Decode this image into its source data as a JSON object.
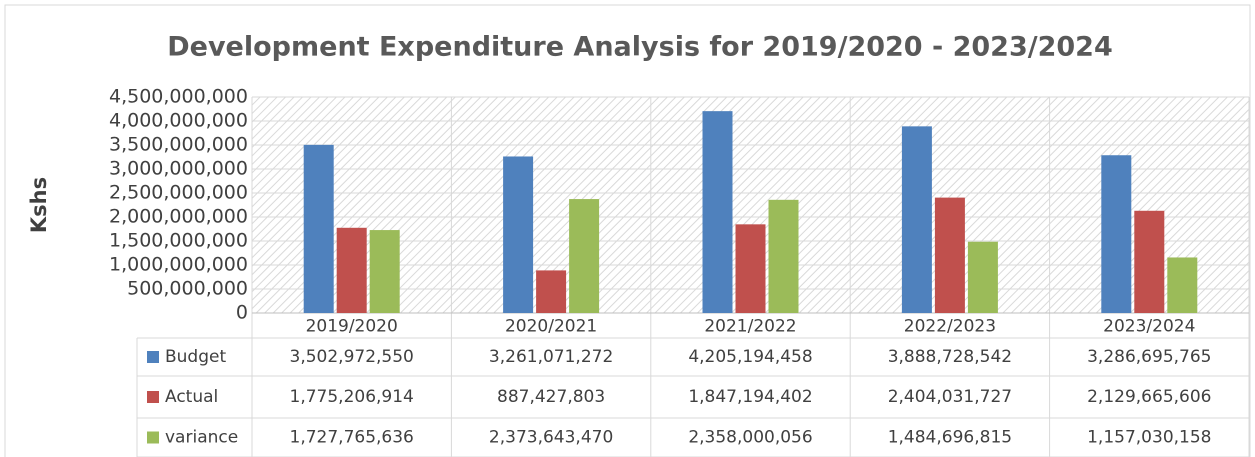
{
  "chart_data": {
    "type": "bar",
    "title": "Development Expenditure Analysis for 2019/2020 - 2023/2024",
    "y_label": "Kshs",
    "categories": [
      "2019/2020",
      "2020/2021",
      "2021/2022",
      "2022/2023",
      "2023/2024"
    ],
    "series": [
      {
        "name": "Budget",
        "color": "#4f81bd",
        "values": [
          3502972550,
          3261071272,
          4205194458,
          3888728542,
          3286695765
        ],
        "value_labels": [
          "3,502,972,550",
          "3,261,071,272",
          "4,205,194,458",
          "3,888,728,542",
          "3,286,695,765"
        ]
      },
      {
        "name": "Actual",
        "color": "#c0504d",
        "values": [
          1775206914,
          887427803,
          1847194402,
          2404031727,
          2129665606
        ],
        "value_labels": [
          "1,775,206,914",
          "887,427,803",
          "1,847,194,402",
          "2,404,031,727",
          "2,129,665,606"
        ]
      },
      {
        "name": "variance",
        "color": "#9bbb59",
        "values": [
          1727765636,
          2373643470,
          2358000056,
          1484696815,
          1157030158
        ],
        "value_labels": [
          "1,727,765,636",
          "2,373,643,470",
          "2,358,000,056",
          "1,484,696,815",
          "1,157,030,158"
        ]
      }
    ],
    "ylim": [
      0,
      4500000000
    ],
    "yticks": [
      0,
      {
        "value": 500000000,
        "label": "500,000,000"
      },
      {
        "value": 1000000000,
        "label": "1,000,000,000"
      },
      {
        "value": 1500000000,
        "label": "1,500,000,000"
      },
      {
        "value": 2000000000,
        "label": "2,000,000,000"
      },
      {
        "value": 2500000000,
        "label": "2,500,000,000"
      },
      {
        "value": 3000000000,
        "label": "3,000,000,000"
      },
      {
        "value": 3500000000,
        "label": "3,500,000,000"
      },
      {
        "value": 4000000000,
        "label": "4,000,000,000"
      },
      {
        "value": 4500000000,
        "label": "4,500,000,000"
      }
    ],
    "grid": true
  }
}
